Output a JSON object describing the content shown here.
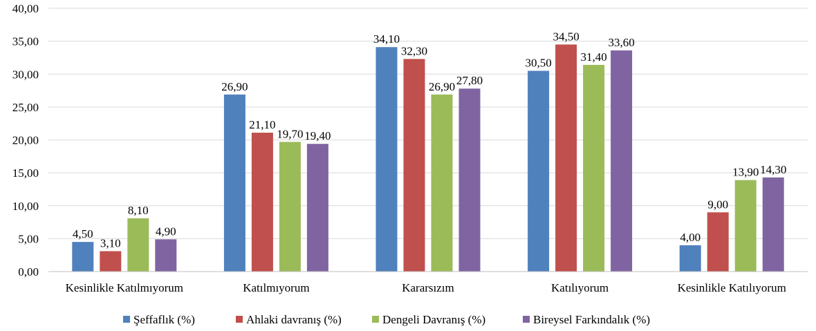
{
  "chart_data": {
    "type": "bar",
    "categories": [
      "Kesinlikle Katılmıyorum",
      "Katılmıyorum",
      "Kararsızım",
      "Katılıyorum",
      "Kesinlikle Katılıyorum"
    ],
    "series": [
      {
        "name": "Şeffaflık (%)",
        "color": "#4f81bd",
        "values": [
          4.5,
          26.9,
          34.1,
          30.5,
          4.0
        ],
        "labels": [
          "4,50",
          "26,90",
          "34,10",
          "30,50",
          "4,00"
        ]
      },
      {
        "name": "Ahlaki davranış (%)",
        "color": "#c0504d",
        "values": [
          3.1,
          21.1,
          32.3,
          34.5,
          9.0
        ],
        "labels": [
          "3,10",
          "21,10",
          "32,30",
          "34,50",
          "9,00"
        ]
      },
      {
        "name": "Dengeli Davranış (%)",
        "color": "#9bbb59",
        "values": [
          8.1,
          19.7,
          26.9,
          31.4,
          13.9
        ],
        "labels": [
          "8,10",
          "19,70",
          "26,90",
          "31,40",
          "13,90"
        ]
      },
      {
        "name": "Bireysel Farkındalık (%)",
        "color": "#8064a2",
        "values": [
          4.9,
          19.4,
          27.8,
          33.6,
          14.3
        ],
        "labels": [
          "4,90",
          "19,40",
          "27,80",
          "33,60",
          "14,30"
        ]
      }
    ],
    "ylim": [
      0,
      40
    ],
    "yticks": [
      "0,00",
      "5,00",
      "10,00",
      "15,00",
      "20,00",
      "25,00",
      "30,00",
      "35,00",
      "40,00"
    ],
    "grid": true,
    "legend": "bottom",
    "title": "",
    "xlabel": "",
    "ylabel": ""
  }
}
